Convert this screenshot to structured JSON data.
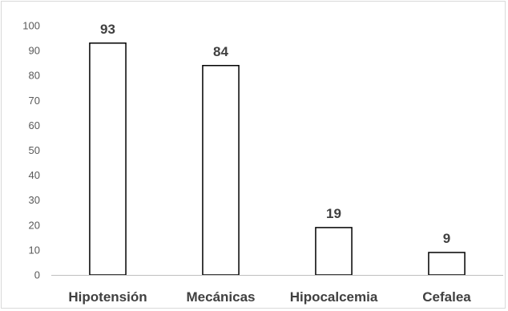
{
  "chart_data": {
    "type": "bar",
    "categories": [
      "Hipotensión",
      "Mecánicas",
      "Hipocalcemia",
      "Cefalea"
    ],
    "values": [
      93,
      84,
      19,
      9
    ],
    "title": "",
    "xlabel": "",
    "ylabel": "",
    "ylim": [
      0,
      100
    ],
    "yticks": [
      0,
      10,
      20,
      30,
      40,
      50,
      60,
      70,
      80,
      90,
      100
    ],
    "data_labels": [
      "93",
      "84",
      "19",
      "9"
    ],
    "grid": false,
    "legend": "none",
    "colors": {
      "bar_fill": "#ffffff",
      "bar_stroke": "#000000",
      "axis": "#bfbfbf",
      "frame": "#d9d9d9",
      "text": "#404040"
    }
  }
}
